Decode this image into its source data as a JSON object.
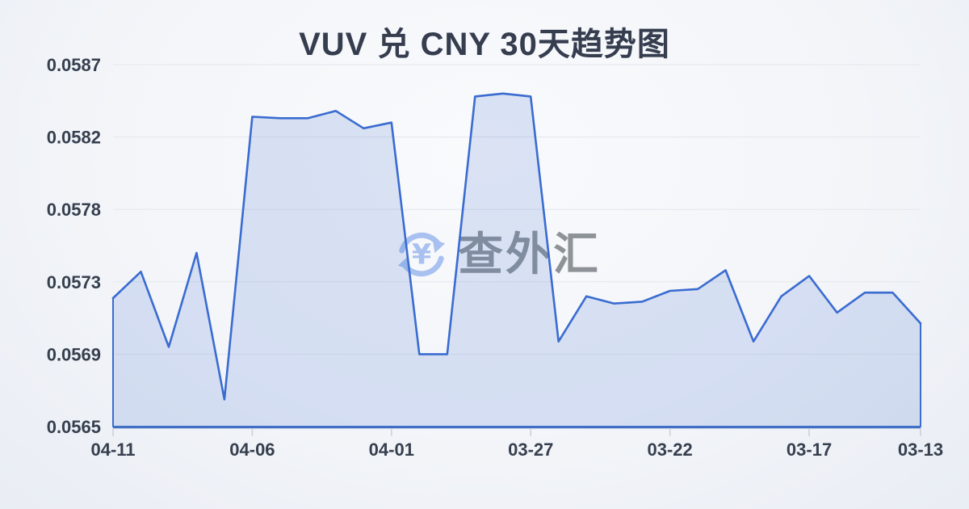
{
  "title": "VUV 兑 CNY 30天趋势图",
  "watermark": {
    "text": "查外汇",
    "icon": "currency-exchange-yen-icon"
  },
  "colors": {
    "line": "#3a6cd0",
    "fill": "#3a6cd0",
    "fill_opacity": 0.16,
    "axis_line": "#4470c4",
    "gridline": "#e3e6ec",
    "axis_tick": "#ccd0d7",
    "axis_label": "#363f4e",
    "title_text": "#353d4f",
    "watermark_icon": "#a5bff0"
  },
  "chart_data": {
    "type": "area",
    "title": "VUV 兑 CNY 30天趋势图",
    "x": [
      "04-11",
      "04-10",
      "04-09",
      "04-08",
      "04-07",
      "04-06",
      "04-05",
      "04-04",
      "04-03",
      "04-02",
      "04-01",
      "03-31",
      "03-30",
      "03-29",
      "03-28",
      "03-27",
      "03-26",
      "03-25",
      "03-24",
      "03-23",
      "03-22",
      "03-21",
      "03-20",
      "03-19",
      "03-18",
      "03-17",
      "03-16",
      "03-15",
      "03-14",
      "03-13"
    ],
    "values": [
      0.05721,
      0.05737,
      0.05694,
      0.0575,
      0.05665,
      0.05834,
      0.05833,
      0.05833,
      0.05838,
      0.05826,
      0.0583,
      0.0569,
      0.0569,
      0.05848,
      0.0585,
      0.05848,
      0.05697,
      0.05722,
      0.05718,
      0.05719,
      0.05725,
      0.05726,
      0.05738,
      0.05697,
      0.05722,
      0.05734,
      0.05713,
      0.05724,
      0.05724,
      0.05707
    ],
    "y_ticks": [
      0.0587,
      0.0582,
      0.0578,
      0.0573,
      0.0569,
      0.0565
    ],
    "y_tick_labels": [
      "0.0587",
      "0.0582",
      "0.0578",
      "0.0573",
      "0.0569",
      "0.0565"
    ],
    "x_tick_indices": [
      0,
      5,
      10,
      15,
      20,
      25,
      29
    ],
    "x_tick_labels": [
      "04-11",
      "04-06",
      "04-01",
      "03-27",
      "03-22",
      "03-17",
      "03-13"
    ],
    "ylim": [
      0.0565,
      0.0587
    ],
    "grid": true,
    "legend": "none",
    "xlabel": "",
    "ylabel": ""
  }
}
